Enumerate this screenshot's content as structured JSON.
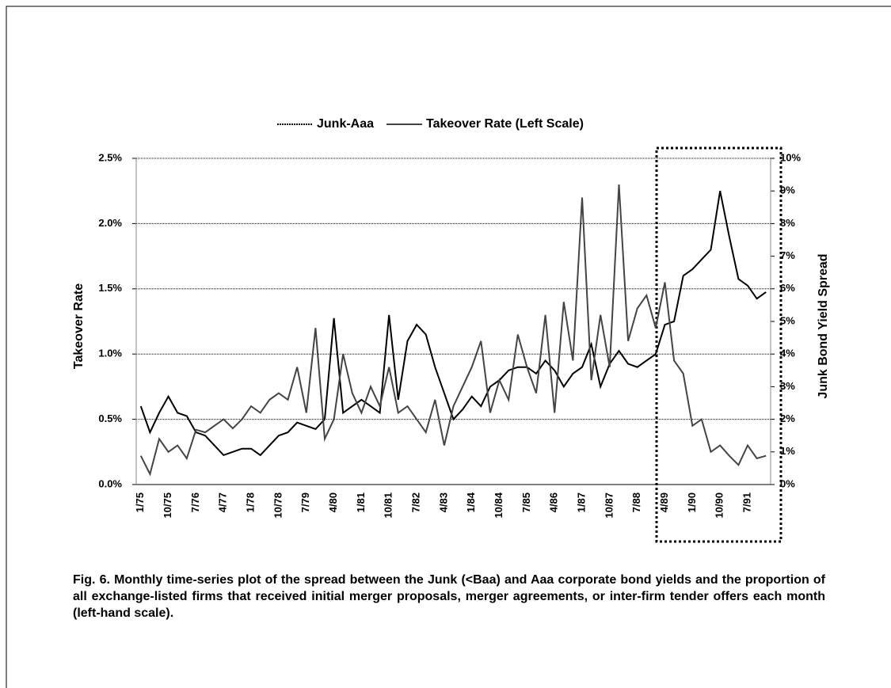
{
  "chart_data": {
    "type": "line",
    "legend": "top",
    "ylabel": "Takeover Rate",
    "y2label": "Junk Bond Yield Spread",
    "caption": "Fig. 6.  Monthly time-series plot of the spread between the Junk (<Baa)  and Aaa corporate bond yields and the proportion of all exchange-listed firms that received initial merger proposals, merger agreements, or inter-firm tender offers each month (left-hand scale).",
    "categories": [
      "1/75",
      null,
      null,
      "10/75",
      null,
      null,
      "7/76",
      null,
      null,
      "4/77",
      null,
      null,
      "1/78",
      null,
      null,
      "10/78",
      null,
      null,
      "7/79",
      null,
      null,
      "4/80",
      null,
      null,
      "1/81",
      null,
      null,
      "10/81",
      null,
      null,
      "7/82",
      null,
      null,
      "4/83",
      null,
      null,
      "1/84",
      null,
      null,
      "10/84",
      null,
      null,
      "7/85",
      null,
      null,
      "4/86",
      null,
      null,
      "1/87",
      null,
      null,
      "10/87",
      null,
      null,
      "7/88",
      null,
      null,
      "4/89",
      null,
      null,
      "1/90",
      null,
      null,
      "10/90",
      null,
      null,
      "7/91",
      null,
      null
    ],
    "series": [
      {
        "name": "Junk-Aaa",
        "color": "#000000",
        "axis": "y2",
        "values": [
          2.4,
          1.6,
          2.2,
          2.7,
          2.2,
          2.1,
          1.6,
          1.5,
          1.2,
          0.9,
          1.0,
          1.1,
          1.1,
          0.9,
          1.2,
          1.5,
          1.6,
          1.9,
          1.8,
          1.7,
          2.0,
          5.1,
          2.2,
          2.4,
          2.6,
          2.4,
          2.2,
          5.2,
          2.6,
          4.4,
          4.9,
          4.6,
          3.6,
          2.8,
          2.0,
          2.3,
          2.7,
          2.4,
          3.0,
          3.2,
          3.5,
          3.6,
          3.6,
          3.4,
          3.8,
          3.5,
          3.0,
          3.4,
          3.6,
          4.3,
          3.0,
          3.7,
          4.1,
          3.7,
          3.6,
          3.8,
          4.0,
          4.9,
          5.0,
          6.4,
          6.6,
          6.9,
          7.2,
          9.0,
          7.6,
          6.3,
          6.1,
          5.7,
          5.9
        ]
      },
      {
        "name": "Takeover Rate (Left Scale)",
        "color": "#444444",
        "values": [
          0.22,
          0.08,
          0.35,
          0.25,
          0.3,
          0.2,
          0.42,
          0.4,
          0.45,
          0.5,
          0.43,
          0.5,
          0.6,
          0.55,
          0.65,
          0.7,
          0.65,
          0.9,
          0.55,
          1.2,
          0.35,
          0.5,
          1.0,
          0.7,
          0.55,
          0.75,
          0.6,
          0.9,
          0.55,
          0.6,
          0.5,
          0.4,
          0.65,
          0.3,
          0.6,
          0.75,
          0.9,
          1.1,
          0.55,
          0.8,
          0.65,
          1.15,
          0.9,
          0.7,
          1.3,
          0.55,
          1.4,
          0.95,
          2.2,
          0.8,
          1.3,
          0.9,
          2.3,
          1.1,
          1.35,
          1.45,
          1.2,
          1.55,
          0.95,
          0.85,
          0.45,
          0.5,
          0.25,
          0.3,
          0.22,
          0.15,
          0.3,
          0.2,
          0.22
        ]
      }
    ],
    "ylim": [
      0,
      2.5
    ],
    "yticks": [
      {
        "value": 0,
        "label": "0.0%"
      },
      {
        "value": 0.5,
        "label": "0.5%"
      },
      {
        "value": 1,
        "label": "1.0%"
      },
      {
        "value": 1.5,
        "label": "1.5%"
      },
      {
        "value": 2,
        "label": "2.0%"
      },
      {
        "value": 2.5,
        "label": "2.5%"
      }
    ],
    "y2lim": [
      0,
      10
    ],
    "y2ticks": [
      {
        "value": 0,
        "label": "0%"
      },
      {
        "value": 1,
        "label": "1%"
      },
      {
        "value": 2,
        "label": "2%"
      },
      {
        "value": 3,
        "label": "3%"
      },
      {
        "value": 4,
        "label": "4%"
      },
      {
        "value": 5,
        "label": "5%"
      },
      {
        "value": 6,
        "label": "6%"
      },
      {
        "value": 7,
        "label": "7%"
      },
      {
        "value": 8,
        "label": "8%"
      },
      {
        "value": 9,
        "label": "9%"
      },
      {
        "value": 10,
        "label": "10%"
      }
    ],
    "grid": true
  }
}
